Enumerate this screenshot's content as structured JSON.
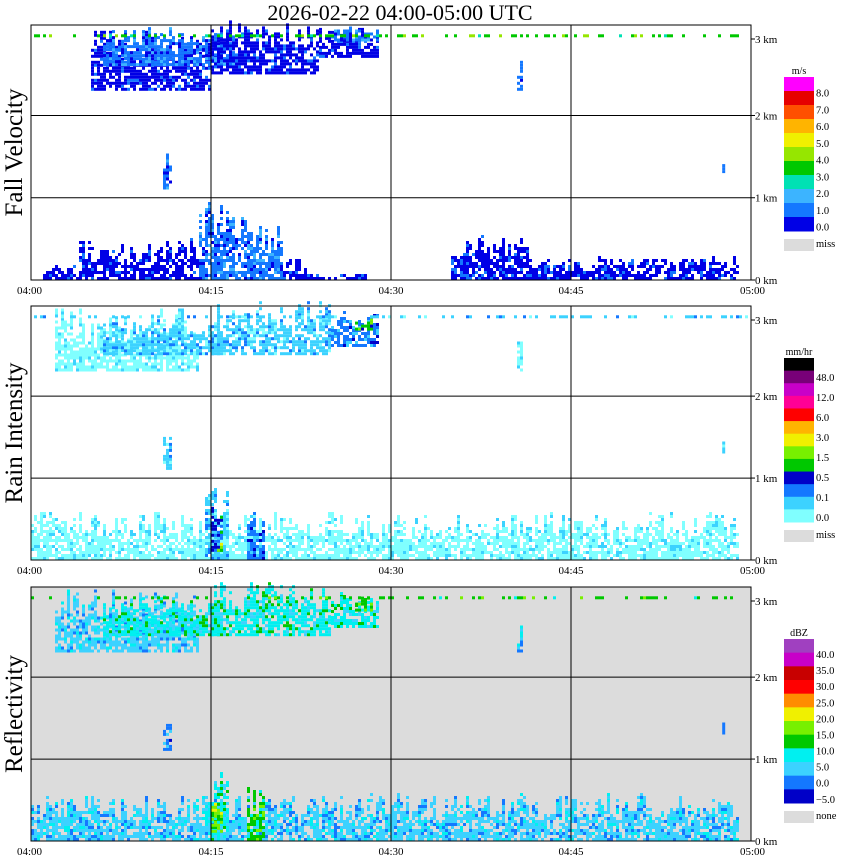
{
  "title": "2026-02-22   04:00-05:00 UTC",
  "colors": {
    "miss": "#dcdcdc",
    "grid": "#000000"
  },
  "chart_data": [
    {
      "type": "heatmap",
      "ylabel": "Fall Velocity",
      "x_ticks": [
        "04:00",
        "04:15",
        "04:30",
        "04:45",
        "05:00"
      ],
      "y_ticks": [
        "0 km",
        "1 km",
        "2 km",
        "3 km"
      ],
      "xlim": [
        "04:00",
        "05:00"
      ],
      "ylim_km": [
        0,
        3.1
      ],
      "background": "white",
      "legend": {
        "unit": "m/s",
        "colors": [
          "#0000e6",
          "#1478ff",
          "#3cb4ff",
          "#00e1b4",
          "#00c800",
          "#96e600",
          "#f0f000",
          "#ffb400",
          "#ff5000",
          "#e60000",
          "#ff00ff"
        ],
        "labels": [
          "8.0",
          "7.0",
          "6.0",
          "5.0",
          "4.0",
          "3.0",
          "2.0",
          "1.0",
          "0.0"
        ],
        "miss_label": "miss"
      },
      "echoes": [
        {
          "t0": 1,
          "t1": 4,
          "b": 0,
          "h": 0.2,
          "cls": 0
        },
        {
          "t0": 4,
          "t1": 11,
          "b": 0,
          "h": 0.5,
          "cls": 0
        },
        {
          "t0": 11,
          "t1": 14,
          "b": 0,
          "h": 0.6,
          "cls": 0
        },
        {
          "t0": 14,
          "t1": 18,
          "b": 0,
          "h": 1.1,
          "cls": 1
        },
        {
          "t0": 18,
          "t1": 21,
          "b": 0,
          "h": 0.7,
          "cls": 1
        },
        {
          "t0": 21,
          "t1": 23,
          "b": 0,
          "h": 0.3,
          "cls": 0
        },
        {
          "t0": 22,
          "t1": 28,
          "b": 0,
          "h": 0.1,
          "cls": 0
        },
        {
          "t0": 35,
          "t1": 42,
          "b": 0,
          "h": 0.6,
          "cls": 0
        },
        {
          "t0": 42,
          "t1": 59,
          "b": 0,
          "h": 0.3,
          "cls": 0
        },
        {
          "t0": 11,
          "t1": 11.6,
          "b": 1.1,
          "h": 0.6,
          "cls": 1
        },
        {
          "t0": 5,
          "t1": 15,
          "b": 2.3,
          "h": 0.8,
          "cls": 0
        },
        {
          "t0": 6,
          "t1": 17,
          "b": 2.6,
          "h": 0.5,
          "cls": 1
        },
        {
          "t0": 15,
          "t1": 24,
          "b": 2.5,
          "h": 0.7,
          "cls": 0
        },
        {
          "t0": 24,
          "t1": 29,
          "b": 2.7,
          "h": 0.4,
          "cls": 0
        },
        {
          "t0": 25,
          "t1": 29,
          "b": 2.9,
          "h": 0.2,
          "cls": 1
        },
        {
          "t0": 40.5,
          "t1": 40.8,
          "b": 2.3,
          "h": 0.4,
          "cls": 1
        },
        {
          "t0": 57.6,
          "t1": 57.8,
          "b": 1.3,
          "h": 0.2,
          "cls": 1
        },
        {
          "t0": 0,
          "t1": 60,
          "b": 2.95,
          "h": 0.05,
          "cls": 4
        }
      ]
    },
    {
      "type": "heatmap",
      "ylabel": "Rain Intensity",
      "x_ticks": [
        "04:00",
        "04:15",
        "04:30",
        "04:45",
        "05:00"
      ],
      "y_ticks": [
        "0 km",
        "1 km",
        "2 km",
        "3 km"
      ],
      "xlim": [
        "04:00",
        "05:00"
      ],
      "ylim_km": [
        0,
        3.1
      ],
      "background": "white",
      "legend": {
        "unit": "mm/hr",
        "colors": [
          "#80ffff",
          "#3cd2ff",
          "#1478ff",
          "#0000c8",
          "#00c800",
          "#78f000",
          "#f0f000",
          "#ffb400",
          "#ff0000",
          "#ff0096",
          "#c800c8",
          "#780078",
          "#000000"
        ],
        "labels": [
          "48.0",
          "12.0",
          "6.0",
          "3.0",
          "1.5",
          "0.5",
          "0.1",
          "0.0"
        ],
        "miss_label": "miss"
      },
      "echoes": [
        {
          "t0": 0,
          "t1": 35,
          "b": 0,
          "h": 0.6,
          "cls": 0
        },
        {
          "t0": 35,
          "t1": 59,
          "b": 0,
          "h": 0.6,
          "cls": 0
        },
        {
          "t0": 14.5,
          "t1": 16.5,
          "b": 0,
          "h": 0.9,
          "cls": 1
        },
        {
          "t0": 15,
          "t1": 16,
          "b": 0.1,
          "h": 0.6,
          "cls": 3
        },
        {
          "t0": 18,
          "t1": 19.5,
          "b": 0,
          "h": 0.7,
          "cls": 2
        },
        {
          "t0": 15.5,
          "t1": 16,
          "b": 0.1,
          "h": 0.2,
          "cls": 5
        },
        {
          "t0": 11,
          "t1": 11.6,
          "b": 1.1,
          "h": 0.6,
          "cls": 1
        },
        {
          "t0": 2,
          "t1": 14,
          "b": 2.3,
          "h": 0.8,
          "cls": 0
        },
        {
          "t0": 6,
          "t1": 16,
          "b": 2.5,
          "h": 0.5,
          "cls": 1
        },
        {
          "t0": 15,
          "t1": 25,
          "b": 2.5,
          "h": 0.7,
          "cls": 1
        },
        {
          "t0": 25,
          "t1": 29,
          "b": 2.6,
          "h": 0.5,
          "cls": 2
        },
        {
          "t0": 27,
          "t1": 28.5,
          "b": 2.8,
          "h": 0.2,
          "cls": 4
        },
        {
          "t0": 40.5,
          "t1": 40.8,
          "b": 2.3,
          "h": 0.4,
          "cls": 0
        },
        {
          "t0": 57.6,
          "t1": 57.8,
          "b": 1.3,
          "h": 0.2,
          "cls": 1
        },
        {
          "t0": 0,
          "t1": 60,
          "b": 2.95,
          "h": 0.05,
          "cls": 1
        }
      ]
    },
    {
      "type": "heatmap",
      "ylabel": "Reflectivity",
      "x_ticks": [
        "04:00",
        "04:15",
        "04:30",
        "04:45",
        "05:00"
      ],
      "y_ticks": [
        "0 km",
        "1 km",
        "2 km",
        "3 km"
      ],
      "xlim": [
        "04:00",
        "05:00"
      ],
      "ylim_km": [
        0,
        3.1
      ],
      "background": "grey",
      "legend": {
        "unit": "dBZ",
        "colors": [
          "#0000c8",
          "#1478ff",
          "#3cd2ff",
          "#00f0f0",
          "#00c800",
          "#78f000",
          "#f0f000",
          "#ff8c00",
          "#ff0000",
          "#c80000",
          "#c800c8",
          "#a040c0"
        ],
        "labels": [
          "40.0",
          "35.0",
          "30.0",
          "25.0",
          "20.0",
          "15.0",
          "10.0",
          "5.0",
          "0.0",
          "−5.0"
        ],
        "miss_label": "none"
      },
      "echoes": [
        {
          "t0": 0,
          "t1": 35,
          "b": 0,
          "h": 0.6,
          "cls": 2
        },
        {
          "t0": 35,
          "t1": 59,
          "b": 0,
          "h": 0.6,
          "cls": 2
        },
        {
          "t0": 14.5,
          "t1": 16.5,
          "b": 0,
          "h": 0.9,
          "cls": 3
        },
        {
          "t0": 15,
          "t1": 16,
          "b": 0.1,
          "h": 0.6,
          "cls": 5
        },
        {
          "t0": 18,
          "t1": 19.5,
          "b": 0,
          "h": 0.7,
          "cls": 4
        },
        {
          "t0": 11,
          "t1": 11.6,
          "b": 1.1,
          "h": 0.6,
          "cls": 1
        },
        {
          "t0": 2,
          "t1": 14,
          "b": 2.3,
          "h": 0.8,
          "cls": 2
        },
        {
          "t0": 6,
          "t1": 16,
          "b": 2.5,
          "h": 0.5,
          "cls": 3
        },
        {
          "t0": 15,
          "t1": 25,
          "b": 2.5,
          "h": 0.7,
          "cls": 3
        },
        {
          "t0": 25,
          "t1": 29,
          "b": 2.6,
          "h": 0.5,
          "cls": 3
        },
        {
          "t0": 27,
          "t1": 28.5,
          "b": 2.8,
          "h": 0.2,
          "cls": 4
        },
        {
          "t0": 40.5,
          "t1": 40.8,
          "b": 2.3,
          "h": 0.4,
          "cls": 2
        },
        {
          "t0": 57.6,
          "t1": 57.8,
          "b": 1.3,
          "h": 0.2,
          "cls": 1
        },
        {
          "t0": 0,
          "t1": 60,
          "b": 2.95,
          "h": 0.05,
          "cls": 4
        }
      ]
    }
  ]
}
